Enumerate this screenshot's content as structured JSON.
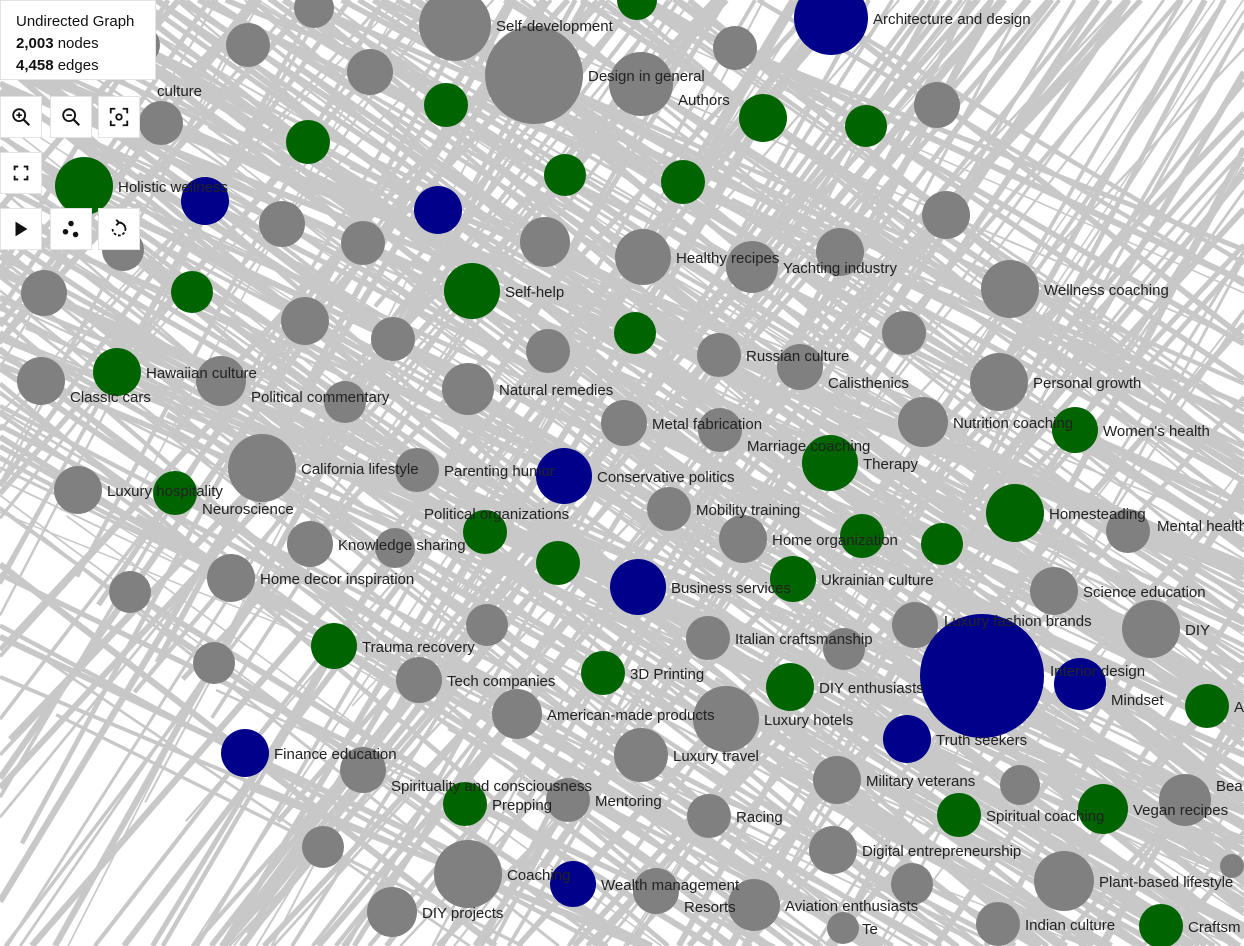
{
  "info": {
    "title": "Undirected Graph",
    "node_count": "2,003",
    "node_label": "nodes",
    "edge_count": "4,458",
    "edge_label": "edges"
  },
  "controls": [
    {
      "name": "zoom-in",
      "icon": "zoom-in-icon"
    },
    {
      "name": "zoom-out",
      "icon": "zoom-out-icon"
    },
    {
      "name": "reset-view",
      "icon": "focus-icon"
    },
    {
      "name": "fullscreen",
      "icon": "fullscreen-icon"
    },
    {
      "name": "play-layout",
      "icon": "play-icon"
    },
    {
      "name": "cluster-layout",
      "icon": "dots-icon"
    },
    {
      "name": "reset-layout",
      "icon": "rotate-icon"
    }
  ],
  "colors": {
    "gray": "#808080",
    "green": "#006400",
    "blue": "#00008b",
    "edge": "#c8c8c8"
  },
  "nodes": [
    {
      "label": "culture",
      "group": "gray"
    },
    {
      "label": "Self-development",
      "group": "gray"
    },
    {
      "label": "Architecture and design",
      "group": "blue"
    },
    {
      "label": "Design in general",
      "group": "gray"
    },
    {
      "label": "Authors",
      "group": "gray"
    },
    {
      "label": "Holistic wellness",
      "group": "green"
    },
    {
      "label": "Healthy recipes",
      "group": "gray"
    },
    {
      "label": "Yachting industry",
      "group": "gray"
    },
    {
      "label": "Wellness coaching",
      "group": "gray"
    },
    {
      "label": "Self-help",
      "group": "green"
    },
    {
      "label": "Russian culture",
      "group": "gray"
    },
    {
      "label": "Calisthenics",
      "group": "gray"
    },
    {
      "label": "Hawaiian culture",
      "group": "green"
    },
    {
      "label": "Classic cars",
      "group": "gray"
    },
    {
      "label": "Political commentary",
      "group": "gray"
    },
    {
      "label": "Natural remedies",
      "group": "gray"
    },
    {
      "label": "Personal growth",
      "group": "gray"
    },
    {
      "label": "Metal fabrication",
      "group": "gray"
    },
    {
      "label": "Marriage coaching",
      "group": "gray"
    },
    {
      "label": "Nutrition coaching",
      "group": "gray"
    },
    {
      "label": "Women's health",
      "group": "green"
    },
    {
      "label": "Therapy",
      "group": "green"
    },
    {
      "label": "California lifestyle",
      "group": "gray"
    },
    {
      "label": "Parenting humor",
      "group": "gray"
    },
    {
      "label": "Conservative politics",
      "group": "blue"
    },
    {
      "label": "Luxury hospitality",
      "group": "gray"
    },
    {
      "label": "Neuroscience",
      "group": "green"
    },
    {
      "label": "Mobility training",
      "group": "gray"
    },
    {
      "label": "Homesteading",
      "group": "green"
    },
    {
      "label": "Mental health",
      "group": "gray"
    },
    {
      "label": "Knowledge sharing",
      "group": "gray"
    },
    {
      "label": "Political organizations",
      "group": "green"
    },
    {
      "label": "Home organization",
      "group": "gray"
    },
    {
      "label": "Home decor inspiration",
      "group": "gray"
    },
    {
      "label": "Ukrainian culture",
      "group": "green"
    },
    {
      "label": "Business services",
      "group": "blue"
    },
    {
      "label": "Science education",
      "group": "gray"
    },
    {
      "label": "Luxury fashion brands",
      "group": "gray"
    },
    {
      "label": "DIY",
      "group": "gray"
    },
    {
      "label": "Italian craftsmanship",
      "group": "gray"
    },
    {
      "label": "Trauma recovery",
      "group": "green"
    },
    {
      "label": "Interior design",
      "group": "blue"
    },
    {
      "label": "Mindset",
      "group": "blue"
    },
    {
      "label": "3D Printing",
      "group": "green"
    },
    {
      "label": "Tech companies",
      "group": "gray"
    },
    {
      "label": "DIY enthusiasts",
      "group": "green"
    },
    {
      "label": "A",
      "group": "green"
    },
    {
      "label": "American-made products",
      "group": "gray"
    },
    {
      "label": "Luxury hotels",
      "group": "gray"
    },
    {
      "label": "Truth seekers",
      "group": "blue"
    },
    {
      "label": "Finance education",
      "group": "blue"
    },
    {
      "label": "Luxury travel",
      "group": "gray"
    },
    {
      "label": "Spirituality and consciousness",
      "group": "gray"
    },
    {
      "label": "Military veterans",
      "group": "gray"
    },
    {
      "label": "Prepping",
      "group": "green"
    },
    {
      "label": "Mentoring",
      "group": "gray"
    },
    {
      "label": "Racing",
      "group": "gray"
    },
    {
      "label": "Spiritual coaching",
      "group": "green"
    },
    {
      "label": "Vegan recipes",
      "group": "green"
    },
    {
      "label": "Bea",
      "group": "gray"
    },
    {
      "label": "Digital entrepreneurship",
      "group": "gray"
    },
    {
      "label": "Coaching",
      "group": "gray"
    },
    {
      "label": "Wealth management",
      "group": "blue"
    },
    {
      "label": "Resorts",
      "group": "gray"
    },
    {
      "label": "Plant-based lifestyle",
      "group": "gray"
    },
    {
      "label": "Aviation enthusiasts",
      "group": "gray"
    },
    {
      "label": "DIY projects",
      "group": "gray"
    },
    {
      "label": "Indian culture",
      "group": "gray"
    },
    {
      "label": "Craftsm",
      "group": "green"
    },
    {
      "label": "Te",
      "group": "gray"
    }
  ],
  "unlabeled_nodes": [
    "gray",
    "green",
    "gray",
    "gray",
    "green",
    "gray",
    "green",
    "green",
    "gray",
    "gray",
    "green",
    "green",
    "green",
    "blue",
    "blue",
    "gray",
    "gray",
    "gray",
    "gray",
    "gray",
    "gray",
    "gray",
    "green",
    "gray",
    "green",
    "gray",
    "gray",
    "gray",
    "gray",
    "gray",
    "gray",
    "gray",
    "gray",
    "gray",
    "gray",
    "gray",
    "gray",
    "green",
    "green",
    "green",
    "gray"
  ]
}
